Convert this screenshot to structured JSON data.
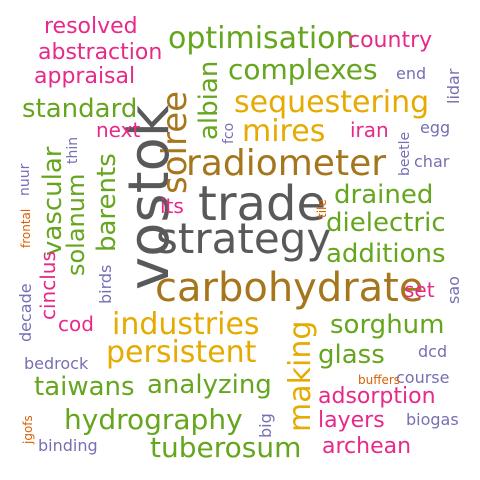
{
  "colors": {
    "green": "#66a61e",
    "pink": "#e7298a",
    "brown": "#a6761d",
    "gold": "#d9a21a",
    "gray": "#595959",
    "purple": "#7570b3",
    "orange": "#d95f02",
    "yellow": "#e6ab02"
  },
  "words": {
    "vostok": "vostok",
    "trade": "trade",
    "strategy": "strategy",
    "carbohydrate": "carbohydrate",
    "radiometer": "radiometer",
    "soiree": "soiree",
    "sequestering": "sequestering",
    "industries": "industries",
    "persistent": "persistent",
    "making": "making",
    "mires": "mires",
    "optimisation": "optimisation",
    "complexes": "complexes",
    "hydrography": "hydrography",
    "tuberosum": "tuberosum",
    "analyzing": "analyzing",
    "taiwans": "taiwans",
    "standard": "standard",
    "vascular": "vascular",
    "barents": "barents",
    "solanum": "solanum",
    "albian": "albian",
    "drained": "drained",
    "dielectric": "dielectric",
    "additions": "additions",
    "sorghum": "sorghum",
    "glass": "glass",
    "adsorption": "adsorption",
    "layers": "layers",
    "archean": "archean",
    "resolved": "resolved",
    "abstraction": "abstraction",
    "appraisal": "appraisal",
    "country": "country",
    "next": "next",
    "iran": "iran",
    "its": "its",
    "cinclus": "cinclus",
    "cod": "cod",
    "set": "set",
    "end": "end",
    "lidar": "lidar",
    "egg": "egg",
    "beetle": "beetle",
    "char": "char",
    "fco": "fco",
    "thin": "thin",
    "nuur": "nuur",
    "birds": "birds",
    "decade": "decade",
    "sao": "sao",
    "dcd": "dcd",
    "bedrock": "bedrock",
    "course": "course",
    "biogas": "biogas",
    "big": "big",
    "binding": "binding",
    "frontal": "frontal",
    "tile": "tile",
    "buffers": "buffers",
    "jgofs": "jgofs"
  }
}
